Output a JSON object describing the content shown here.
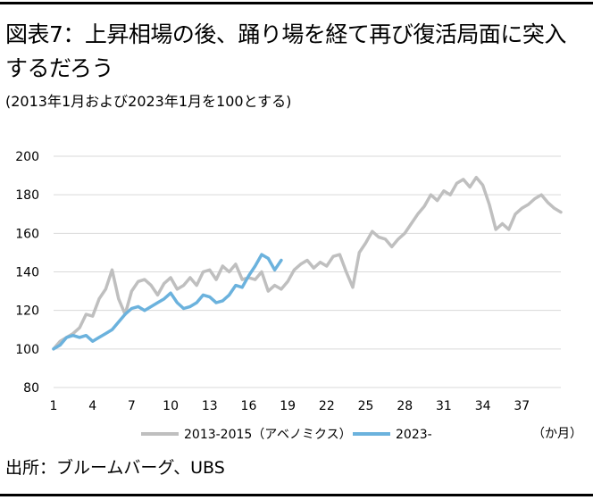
{
  "title": "図表7：上昇相場の後、踊り場を経て再び復活局面に突入するだろう",
  "subtitle": "(2013年1月および2023年1月を100とする)",
  "source": "出所：ブルームバーグ、UBS",
  "chart_data": {
    "type": "line",
    "xlabel": "（か月）",
    "ylabel": "",
    "x_ticks": [
      1,
      4,
      7,
      10,
      13,
      16,
      19,
      22,
      25,
      28,
      31,
      34,
      37
    ],
    "y_ticks": [
      80,
      100,
      120,
      140,
      160,
      180,
      200
    ],
    "xlim": [
      1,
      40
    ],
    "ylim": [
      80,
      200
    ],
    "grid": "horizontal",
    "legend_position": "bottom",
    "series": [
      {
        "name": "2013-2015（アベノミクス）",
        "color": "#bfbfbf",
        "x": [
          1,
          1.5,
          2,
          2.5,
          3,
          3.5,
          4,
          4.5,
          5,
          5.5,
          6,
          6.5,
          7,
          7.5,
          8,
          8.5,
          9,
          9.5,
          10,
          10.5,
          11,
          11.5,
          12,
          12.5,
          13,
          13.5,
          14,
          14.5,
          15,
          15.5,
          16,
          16.5,
          17,
          17.5,
          18,
          18.5,
          19,
          19.5,
          20,
          20.5,
          21,
          21.5,
          22,
          22.5,
          23,
          23.5,
          24,
          24.5,
          25,
          25.5,
          26,
          26.5,
          27,
          27.5,
          28,
          28.5,
          29,
          29.5,
          30,
          30.5,
          31,
          31.5,
          32,
          32.5,
          33,
          33.5,
          34,
          34.5,
          35,
          35.5,
          36,
          36.5,
          37,
          37.5,
          38,
          38.5,
          39,
          39.5,
          40
        ],
        "values": [
          100,
          104,
          106,
          108,
          111,
          118,
          117,
          126,
          131,
          141,
          126,
          118,
          130,
          135,
          136,
          133,
          128,
          134,
          137,
          131,
          133,
          137,
          133,
          140,
          141,
          136,
          143,
          140,
          144,
          136,
          137,
          136,
          140,
          130,
          133,
          131,
          135,
          141,
          144,
          146,
          142,
          145,
          143,
          148,
          149,
          140,
          132,
          150,
          155,
          161,
          158,
          157,
          153,
          157,
          160,
          165,
          170,
          174,
          180,
          177,
          182,
          180,
          186,
          188,
          184,
          189,
          185,
          175,
          162,
          165,
          162,
          170,
          173,
          175,
          178,
          180,
          176,
          173,
          171
        ]
      },
      {
        "name": "2023-",
        "color": "#6bb2dd",
        "x": [
          1,
          1.5,
          2,
          2.5,
          3,
          3.5,
          4,
          4.5,
          5,
          5.5,
          6,
          6.5,
          7,
          7.5,
          8,
          8.5,
          9,
          9.5,
          10,
          10.5,
          11,
          11.5,
          12,
          12.5,
          13,
          13.5,
          14,
          14.5,
          15,
          15.5,
          16,
          16.5,
          17,
          17.5,
          18,
          18.5
        ],
        "values": [
          100,
          102,
          106,
          107,
          106,
          107,
          104,
          106,
          108,
          110,
          114,
          118,
          121,
          122,
          120,
          122,
          124,
          126,
          129,
          124,
          121,
          122,
          124,
          128,
          127,
          124,
          125,
          128,
          133,
          132,
          138,
          143,
          149,
          147,
          141,
          146
        ]
      }
    ]
  }
}
